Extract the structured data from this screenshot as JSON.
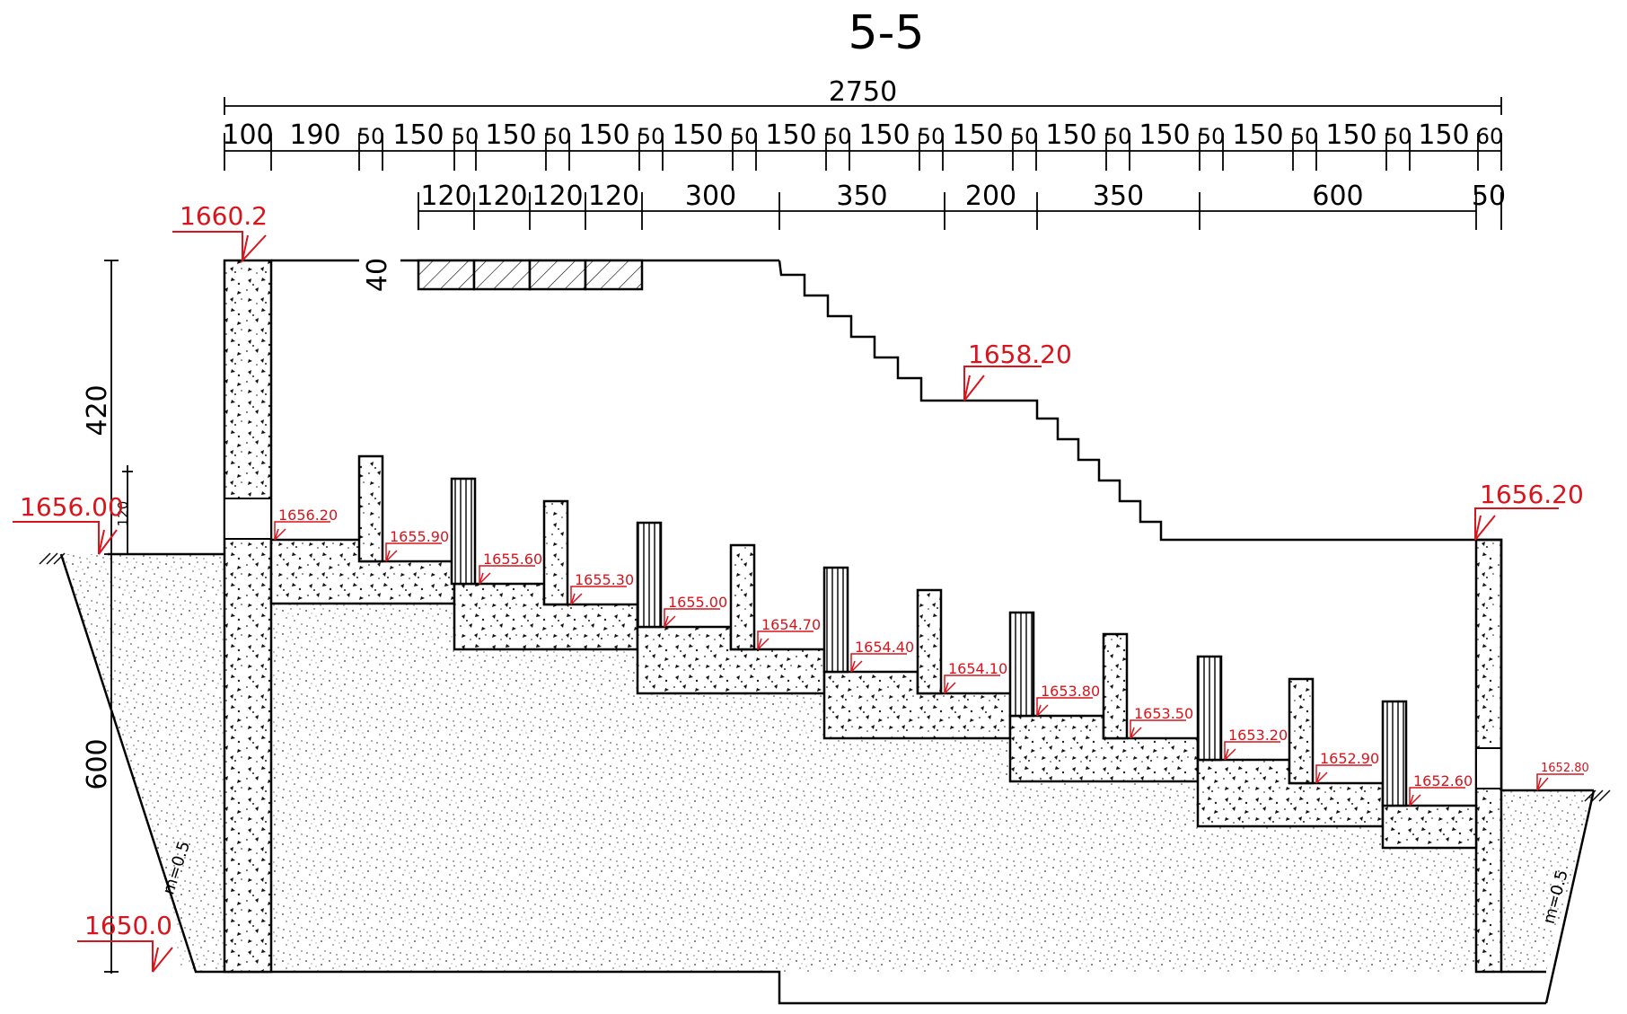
{
  "title": "5-5",
  "dimensions": {
    "overall": "2750",
    "row1": [
      "100",
      "190",
      "50",
      "150",
      "50",
      "150",
      "50",
      "150",
      "50",
      "150",
      "50",
      "150",
      "50",
      "150",
      "50",
      "150",
      "50",
      "150",
      "50",
      "150",
      "50",
      "150",
      "50",
      "150",
      "50",
      "150",
      "60"
    ],
    "row2": [
      "120",
      "120",
      "120",
      "120",
      "300",
      "350",
      "200",
      "350",
      "600",
      "50"
    ],
    "vertical_top": "420",
    "vertical_bottom": "600",
    "vertical_small": "120",
    "slab_thickness": "40"
  },
  "elevations": {
    "top_wall": "1660.2",
    "ground_left": "1656.00",
    "bottom": "1650.0",
    "stair_landing": "1658.20",
    "right_platform": "1656.20",
    "ground_right": "1652.80",
    "steps": [
      "1656.20",
      "1655.90",
      "1655.60",
      "1655.30",
      "1655.00",
      "1654.70",
      "1654.40",
      "1654.10",
      "1653.80",
      "1653.50",
      "1653.20",
      "1652.90",
      "1652.60"
    ]
  },
  "slope_labels": {
    "left": "m=0.5",
    "right": "m=0.5"
  },
  "colors": {
    "elevation": "#d8141c",
    "line": "#000000"
  }
}
